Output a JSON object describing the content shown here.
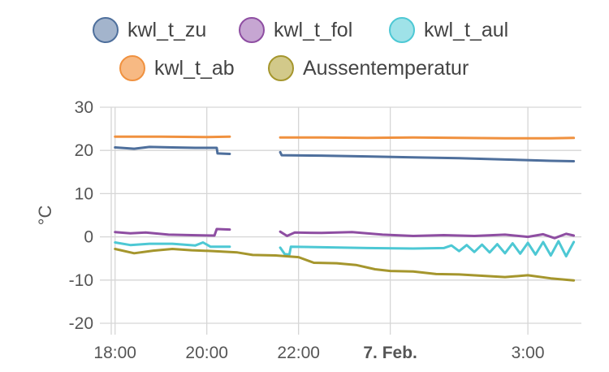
{
  "chart_data": {
    "type": "line",
    "ylabel": "°C",
    "ylim": [
      -20,
      30
    ],
    "yticks": [
      30,
      20,
      10,
      0,
      -10,
      -20
    ],
    "xlim": [
      "2024-02-06T17:55",
      "2024-02-07T04:10"
    ],
    "xticks": [
      {
        "x": "2024-02-06T18:00",
        "label": "18:00",
        "bold": false
      },
      {
        "x": "2024-02-06T20:00",
        "label": "20:00",
        "bold": false
      },
      {
        "x": "2024-02-06T22:00",
        "label": "22:00",
        "bold": false
      },
      {
        "x": "2024-02-07T00:00",
        "label": "7. Feb.",
        "bold": true
      },
      {
        "x": "2024-02-07T03:00",
        "label": "3:00",
        "bold": false
      }
    ],
    "grid": true,
    "legend_position": "top",
    "series": [
      {
        "name": "kwl_t_zu",
        "color": "#4e6f9c",
        "fill": "#a3b4cc",
        "points": [
          [
            "2024-02-06T18:00",
            20.7
          ],
          [
            "2024-02-06T18:25",
            20.4
          ],
          [
            "2024-02-06T18:45",
            20.8
          ],
          [
            "2024-02-06T19:15",
            20.7
          ],
          [
            "2024-02-06T19:45",
            20.6
          ],
          [
            "2024-02-06T20:13",
            20.6
          ],
          [
            "2024-02-06T20:14",
            19.3
          ],
          [
            "2024-02-06T20:30",
            19.2
          ],
          null,
          [
            "2024-02-06T21:36",
            19.6
          ],
          [
            "2024-02-06T21:38",
            18.9
          ],
          [
            "2024-02-06T22:30",
            18.8
          ],
          [
            "2024-02-06T23:30",
            18.6
          ],
          [
            "2024-02-07T00:30",
            18.4
          ],
          [
            "2024-02-07T01:30",
            18.2
          ],
          [
            "2024-02-07T02:30",
            17.9
          ],
          [
            "2024-02-07T03:30",
            17.6
          ],
          [
            "2024-02-07T04:00",
            17.5
          ]
        ]
      },
      {
        "name": "kwl_t_fol",
        "color": "#8e4ea2",
        "fill": "#c6a6d2",
        "points": [
          [
            "2024-02-06T18:00",
            1.1
          ],
          [
            "2024-02-06T18:20",
            0.8
          ],
          [
            "2024-02-06T18:40",
            1.0
          ],
          [
            "2024-02-06T19:10",
            0.5
          ],
          [
            "2024-02-06T19:40",
            0.4
          ],
          [
            "2024-02-06T20:10",
            0.3
          ],
          [
            "2024-02-06T20:13",
            1.8
          ],
          [
            "2024-02-06T20:30",
            1.7
          ],
          null,
          [
            "2024-02-06T21:36",
            1.2
          ],
          [
            "2024-02-06T21:45",
            0.2
          ],
          [
            "2024-02-06T21:55",
            1.0
          ],
          [
            "2024-02-06T22:30",
            0.9
          ],
          [
            "2024-02-06T23:10",
            1.1
          ],
          [
            "2024-02-06T23:50",
            0.5
          ],
          [
            "2024-02-07T00:30",
            0.2
          ],
          [
            "2024-02-07T01:10",
            0.4
          ],
          [
            "2024-02-07T01:50",
            0.2
          ],
          [
            "2024-02-07T02:30",
            0.5
          ],
          [
            "2024-02-07T03:00",
            0.0
          ],
          [
            "2024-02-07T03:20",
            0.6
          ],
          [
            "2024-02-07T03:35",
            -0.3
          ],
          [
            "2024-02-07T03:50",
            0.7
          ],
          [
            "2024-02-07T04:00",
            0.3
          ]
        ]
      },
      {
        "name": "kwl_t_aul",
        "color": "#4dc8d4",
        "fill": "#9fe2e8",
        "points": [
          [
            "2024-02-06T18:00",
            -1.3
          ],
          [
            "2024-02-06T18:20",
            -1.9
          ],
          [
            "2024-02-06T18:45",
            -1.6
          ],
          [
            "2024-02-06T19:15",
            -1.6
          ],
          [
            "2024-02-06T19:45",
            -2.0
          ],
          [
            "2024-02-06T19:55",
            -1.3
          ],
          [
            "2024-02-06T20:05",
            -2.3
          ],
          [
            "2024-02-06T20:30",
            -2.3
          ],
          null,
          [
            "2024-02-06T21:36",
            -2.5
          ],
          [
            "2024-02-06T21:42",
            -4.0
          ],
          [
            "2024-02-06T21:48",
            -4.1
          ],
          [
            "2024-02-06T21:50",
            -2.3
          ],
          [
            "2024-02-06T22:30",
            -2.4
          ],
          [
            "2024-02-06T23:30",
            -2.6
          ],
          [
            "2024-02-07T00:30",
            -2.7
          ],
          [
            "2024-02-07T01:10",
            -2.6
          ],
          [
            "2024-02-07T01:20",
            -2.0
          ],
          [
            "2024-02-07T01:30",
            -3.3
          ],
          [
            "2024-02-07T01:40",
            -1.9
          ],
          [
            "2024-02-07T01:50",
            -3.5
          ],
          [
            "2024-02-07T02:00",
            -1.8
          ],
          [
            "2024-02-07T02:10",
            -3.6
          ],
          [
            "2024-02-07T02:20",
            -1.7
          ],
          [
            "2024-02-07T02:30",
            -3.8
          ],
          [
            "2024-02-07T02:40",
            -1.5
          ],
          [
            "2024-02-07T02:50",
            -3.9
          ],
          [
            "2024-02-07T03:00",
            -1.4
          ],
          [
            "2024-02-07T03:10",
            -4.1
          ],
          [
            "2024-02-07T03:20",
            -1.2
          ],
          [
            "2024-02-07T03:30",
            -4.3
          ],
          [
            "2024-02-07T03:40",
            -1.0
          ],
          [
            "2024-02-07T03:50",
            -4.5
          ],
          [
            "2024-02-07T04:00",
            -1.2
          ]
        ]
      },
      {
        "name": "kwl_t_ab",
        "color": "#f0913f",
        "fill": "#f7b983",
        "points": [
          [
            "2024-02-06T18:00",
            23.2
          ],
          [
            "2024-02-06T19:00",
            23.2
          ],
          [
            "2024-02-06T20:00",
            23.1
          ],
          [
            "2024-02-06T20:30",
            23.2
          ],
          null,
          [
            "2024-02-06T21:36",
            23.0
          ],
          [
            "2024-02-06T22:30",
            23.0
          ],
          [
            "2024-02-06T23:30",
            22.9
          ],
          [
            "2024-02-07T00:30",
            23.0
          ],
          [
            "2024-02-07T01:30",
            22.9
          ],
          [
            "2024-02-07T02:30",
            22.8
          ],
          [
            "2024-02-07T03:30",
            22.8
          ],
          [
            "2024-02-07T04:00",
            22.9
          ]
        ]
      },
      {
        "name": "Aussentemperatur",
        "color": "#a5962d",
        "fill": "#d2c98a",
        "points": [
          [
            "2024-02-06T18:00",
            -2.8
          ],
          [
            "2024-02-06T18:25",
            -3.8
          ],
          [
            "2024-02-06T18:50",
            -3.2
          ],
          [
            "2024-02-06T19:15",
            -2.8
          ],
          [
            "2024-02-06T19:40",
            -3.1
          ],
          [
            "2024-02-06T20:10",
            -3.3
          ],
          [
            "2024-02-06T20:40",
            -3.6
          ],
          [
            "2024-02-06T21:00",
            -4.2
          ],
          [
            "2024-02-06T21:30",
            -4.3
          ],
          [
            "2024-02-06T22:00",
            -4.7
          ],
          [
            "2024-02-06T22:20",
            -6.0
          ],
          [
            "2024-02-06T22:50",
            -6.1
          ],
          [
            "2024-02-06T23:15",
            -6.5
          ],
          [
            "2024-02-06T23:40",
            -7.5
          ],
          [
            "2024-02-07T00:00",
            -7.9
          ],
          [
            "2024-02-07T00:30",
            -8.0
          ],
          [
            "2024-02-07T01:00",
            -8.6
          ],
          [
            "2024-02-07T01:30",
            -8.7
          ],
          [
            "2024-02-07T02:00",
            -9.0
          ],
          [
            "2024-02-07T02:30",
            -9.3
          ],
          [
            "2024-02-07T03:00",
            -8.9
          ],
          [
            "2024-02-07T03:30",
            -9.6
          ],
          [
            "2024-02-07T04:00",
            -10.1
          ]
        ]
      }
    ]
  }
}
